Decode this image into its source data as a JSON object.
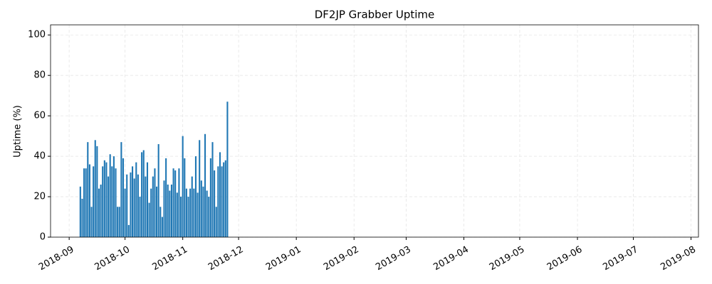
{
  "chart_data": {
    "type": "bar",
    "title": "DF2JP Grabber Uptime",
    "y_label": "Uptime (%)",
    "color": "#1f77b4",
    "grid": true,
    "x": [
      "2018-09-07",
      "2018-09-08",
      "2018-09-09",
      "2018-09-10",
      "2018-09-11",
      "2018-09-12",
      "2018-09-13",
      "2018-09-14",
      "2018-09-15",
      "2018-09-16",
      "2018-09-17",
      "2018-09-18",
      "2018-09-19",
      "2018-09-20",
      "2018-09-21",
      "2018-09-22",
      "2018-09-23",
      "2018-09-24",
      "2018-09-25",
      "2018-09-26",
      "2018-09-27",
      "2018-09-28",
      "2018-09-29",
      "2018-09-30",
      "2018-10-01",
      "2018-10-02",
      "2018-10-03",
      "2018-10-04",
      "2018-10-05",
      "2018-10-06",
      "2018-10-07",
      "2018-10-08",
      "2018-10-09",
      "2018-10-10",
      "2018-10-11",
      "2018-10-12",
      "2018-10-13",
      "2018-10-14",
      "2018-10-15",
      "2018-10-16",
      "2018-10-17",
      "2018-10-18",
      "2018-10-19",
      "2018-10-20",
      "2018-10-21",
      "2018-10-22",
      "2018-10-23",
      "2018-10-24",
      "2018-10-25",
      "2018-10-26",
      "2018-10-27",
      "2018-10-28",
      "2018-10-29",
      "2018-10-30",
      "2018-10-31",
      "2018-11-01",
      "2018-11-02",
      "2018-11-03",
      "2018-11-04",
      "2018-11-05",
      "2018-11-06",
      "2018-11-07",
      "2018-11-08",
      "2018-11-09",
      "2018-11-10",
      "2018-11-11",
      "2018-11-12",
      "2018-11-13",
      "2018-11-14",
      "2018-11-15",
      "2018-11-16",
      "2018-11-17",
      "2018-11-18",
      "2018-11-19",
      "2018-11-20",
      "2018-11-21",
      "2018-11-22",
      "2018-11-23",
      "2018-11-24",
      "2018-11-25"
    ],
    "values": [
      25,
      19,
      34,
      34,
      47,
      36,
      15,
      35,
      48,
      45,
      24,
      26,
      35,
      38,
      37,
      30,
      41,
      35,
      40,
      34,
      15,
      15,
      47,
      39,
      24,
      31,
      6,
      32,
      35,
      29,
      37,
      31,
      20,
      42,
      43,
      30,
      37,
      17,
      24,
      30,
      34,
      25,
      46,
      15,
      10,
      28,
      39,
      26,
      23,
      26,
      34,
      33,
      22,
      34,
      20,
      50,
      39,
      24,
      20,
      24,
      30,
      24,
      40,
      22,
      48,
      28,
      25,
      51,
      23,
      20,
      39,
      47,
      33,
      15,
      35,
      42,
      35,
      37,
      38,
      67
    ],
    "xlim": [
      "2018-08-22",
      "2019-08-05"
    ],
    "xticks": [
      {
        "value": "2018-09-01",
        "label": "2018-09"
      },
      {
        "value": "2018-10-01",
        "label": "2018-10"
      },
      {
        "value": "2018-11-01",
        "label": "2018-11"
      },
      {
        "value": "2018-12-01",
        "label": "2018-12"
      },
      {
        "value": "2019-01-01",
        "label": "2019-01"
      },
      {
        "value": "2019-02-01",
        "label": "2019-02"
      },
      {
        "value": "2019-03-01",
        "label": "2019-03"
      },
      {
        "value": "2019-04-01",
        "label": "2019-04"
      },
      {
        "value": "2019-05-01",
        "label": "2019-05"
      },
      {
        "value": "2019-06-01",
        "label": "2019-06"
      },
      {
        "value": "2019-07-01",
        "label": "2019-07"
      },
      {
        "value": "2019-08-01",
        "label": "2019-08"
      }
    ],
    "ylim": [
      0,
      105
    ],
    "yticks": [
      0,
      20,
      40,
      60,
      80,
      100
    ]
  }
}
